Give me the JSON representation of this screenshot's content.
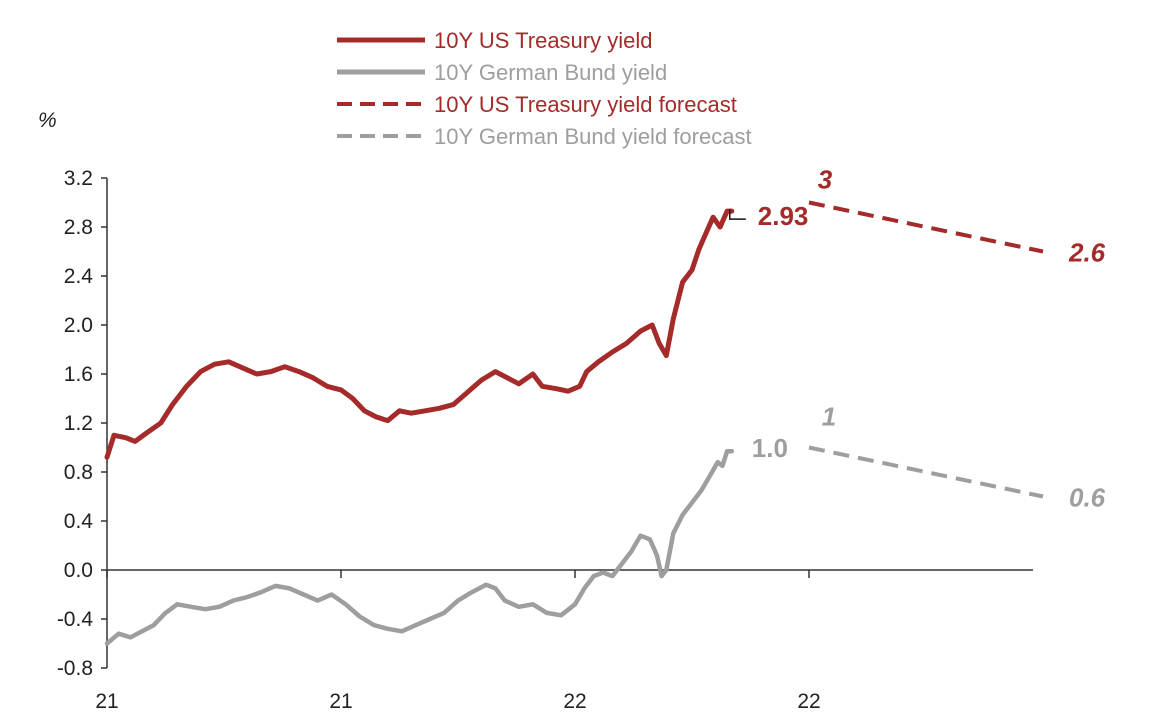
{
  "chart_data": {
    "type": "line",
    "ylabel": "%",
    "ylim": [
      -0.8,
      3.2
    ],
    "yticks": [
      "3.2",
      "2.8",
      "2.4",
      "2.0",
      "1.6",
      "1.2",
      "0.8",
      "0.4",
      "0.0",
      "-0.4",
      "-0.8"
    ],
    "ytick_values": [
      3.2,
      2.8,
      2.4,
      2.0,
      1.6,
      1.2,
      0.8,
      0.4,
      0.0,
      -0.4,
      -0.8
    ],
    "xlim": [
      0,
      4
    ],
    "xticks": [
      "21",
      "21",
      "22",
      "22"
    ],
    "xtick_values": [
      0,
      1,
      2,
      3
    ],
    "grid": false,
    "legend_position": "top-center",
    "series": [
      {
        "name": "10Y US Treasury yield",
        "color": "#a52a2a",
        "style": "solid",
        "points": [
          [
            0.0,
            0.92
          ],
          [
            0.03,
            1.1
          ],
          [
            0.08,
            1.08
          ],
          [
            0.12,
            1.05
          ],
          [
            0.17,
            1.12
          ],
          [
            0.23,
            1.2
          ],
          [
            0.28,
            1.35
          ],
          [
            0.34,
            1.5
          ],
          [
            0.4,
            1.62
          ],
          [
            0.46,
            1.68
          ],
          [
            0.52,
            1.7
          ],
          [
            0.58,
            1.65
          ],
          [
            0.64,
            1.6
          ],
          [
            0.7,
            1.62
          ],
          [
            0.76,
            1.66
          ],
          [
            0.82,
            1.62
          ],
          [
            0.88,
            1.57
          ],
          [
            0.94,
            1.5
          ],
          [
            1.0,
            1.47
          ],
          [
            1.05,
            1.4
          ],
          [
            1.1,
            1.3
          ],
          [
            1.15,
            1.25
          ],
          [
            1.2,
            1.22
          ],
          [
            1.25,
            1.3
          ],
          [
            1.3,
            1.28
          ],
          [
            1.36,
            1.3
          ],
          [
            1.42,
            1.32
          ],
          [
            1.48,
            1.35
          ],
          [
            1.54,
            1.45
          ],
          [
            1.6,
            1.55
          ],
          [
            1.66,
            1.62
          ],
          [
            1.7,
            1.58
          ],
          [
            1.76,
            1.52
          ],
          [
            1.82,
            1.6
          ],
          [
            1.86,
            1.5
          ],
          [
            1.92,
            1.48
          ],
          [
            1.97,
            1.46
          ],
          [
            2.02,
            1.5
          ],
          [
            2.05,
            1.62
          ],
          [
            2.1,
            1.7
          ],
          [
            2.16,
            1.78
          ],
          [
            2.22,
            1.85
          ],
          [
            2.28,
            1.95
          ],
          [
            2.33,
            2.0
          ],
          [
            2.36,
            1.85
          ],
          [
            2.39,
            1.75
          ],
          [
            2.42,
            2.05
          ],
          [
            2.46,
            2.35
          ],
          [
            2.5,
            2.45
          ],
          [
            2.53,
            2.62
          ],
          [
            2.56,
            2.75
          ],
          [
            2.59,
            2.88
          ],
          [
            2.62,
            2.8
          ],
          [
            2.65,
            2.93
          ],
          [
            2.67,
            2.93
          ]
        ]
      },
      {
        "name": "10Y German Bund yield",
        "color": "#9e9e9e",
        "style": "solid",
        "points": [
          [
            0.0,
            -0.6
          ],
          [
            0.05,
            -0.52
          ],
          [
            0.1,
            -0.55
          ],
          [
            0.15,
            -0.5
          ],
          [
            0.2,
            -0.45
          ],
          [
            0.25,
            -0.35
          ],
          [
            0.3,
            -0.28
          ],
          [
            0.36,
            -0.3
          ],
          [
            0.42,
            -0.32
          ],
          [
            0.48,
            -0.3
          ],
          [
            0.54,
            -0.25
          ],
          [
            0.6,
            -0.22
          ],
          [
            0.66,
            -0.18
          ],
          [
            0.72,
            -0.13
          ],
          [
            0.78,
            -0.15
          ],
          [
            0.84,
            -0.2
          ],
          [
            0.9,
            -0.25
          ],
          [
            0.96,
            -0.2
          ],
          [
            1.02,
            -0.28
          ],
          [
            1.08,
            -0.38
          ],
          [
            1.14,
            -0.45
          ],
          [
            1.2,
            -0.48
          ],
          [
            1.26,
            -0.5
          ],
          [
            1.32,
            -0.45
          ],
          [
            1.38,
            -0.4
          ],
          [
            1.44,
            -0.35
          ],
          [
            1.5,
            -0.25
          ],
          [
            1.56,
            -0.18
          ],
          [
            1.62,
            -0.12
          ],
          [
            1.66,
            -0.15
          ],
          [
            1.7,
            -0.25
          ],
          [
            1.76,
            -0.3
          ],
          [
            1.82,
            -0.28
          ],
          [
            1.88,
            -0.35
          ],
          [
            1.94,
            -0.37
          ],
          [
            2.0,
            -0.28
          ],
          [
            2.04,
            -0.15
          ],
          [
            2.08,
            -0.05
          ],
          [
            2.12,
            -0.02
          ],
          [
            2.16,
            -0.05
          ],
          [
            2.2,
            0.05
          ],
          [
            2.24,
            0.15
          ],
          [
            2.28,
            0.28
          ],
          [
            2.32,
            0.25
          ],
          [
            2.35,
            0.12
          ],
          [
            2.37,
            -0.05
          ],
          [
            2.39,
            0.0
          ],
          [
            2.42,
            0.3
          ],
          [
            2.46,
            0.45
          ],
          [
            2.5,
            0.55
          ],
          [
            2.54,
            0.65
          ],
          [
            2.58,
            0.78
          ],
          [
            2.61,
            0.88
          ],
          [
            2.63,
            0.85
          ],
          [
            2.65,
            0.97
          ],
          [
            2.67,
            0.97
          ]
        ]
      },
      {
        "name": "10Y US Treasury yield forecast",
        "color": "#a52a2a",
        "style": "dashed",
        "points": [
          [
            3.0,
            3.0
          ],
          [
            4.0,
            2.6
          ]
        ]
      },
      {
        "name": "10Y German Bund yield forecast",
        "color": "#9e9e9e",
        "style": "dashed",
        "points": [
          [
            3.0,
            1.0
          ],
          [
            4.0,
            0.6
          ]
        ]
      }
    ],
    "annotations": [
      {
        "text": "2.93",
        "x": 2.67,
        "y": 2.93,
        "series": "10Y US Treasury yield",
        "style": "bold"
      },
      {
        "text": "1.0",
        "x": 2.67,
        "y": 0.97,
        "series": "10Y German Bund yield",
        "style": "bold"
      },
      {
        "text": "3",
        "x": 3.0,
        "y": 3.0,
        "series": "10Y US Treasury yield forecast",
        "style": "bold-italic"
      },
      {
        "text": "2.6",
        "x": 4.0,
        "y": 2.6,
        "series": "10Y US Treasury yield forecast",
        "style": "bold-italic"
      },
      {
        "text": "1",
        "x": 3.0,
        "y": 1.0,
        "series": "10Y German Bund yield forecast",
        "style": "bold-italic"
      },
      {
        "text": "0.6",
        "x": 4.0,
        "y": 0.6,
        "series": "10Y German Bund yield forecast",
        "style": "bold-italic"
      }
    ]
  }
}
